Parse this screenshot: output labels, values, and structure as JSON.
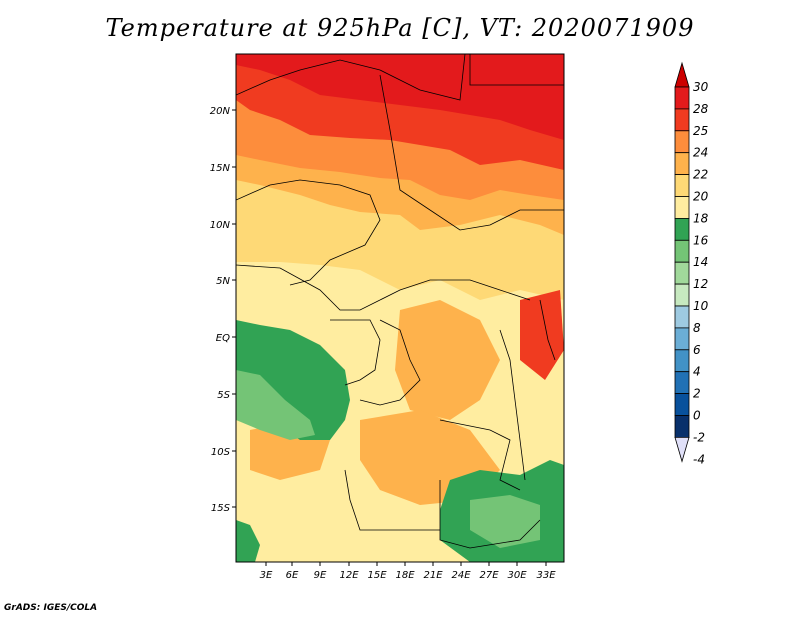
{
  "title": "Temperature at 925hPa [C], VT: 2020071909",
  "footer": "GrADS: IGES/COLA",
  "map": {
    "lon_ticks": [
      "3E",
      "6E",
      "9E",
      "12E",
      "15E",
      "18E",
      "21E",
      "24E",
      "27E",
      "30E",
      "33E"
    ],
    "lat_ticks": [
      "20N",
      "15N",
      "10N",
      "5N",
      "EQ",
      "5S",
      "10S",
      "15S"
    ]
  },
  "colorbar": {
    "labels": [
      "30",
      "28",
      "25",
      "24",
      "22",
      "20",
      "18",
      "16",
      "14",
      "12",
      "10",
      "8",
      "6",
      "4",
      "2",
      "0",
      "-2",
      "-4"
    ],
    "colors": [
      "#cc0000",
      "#e31a1c",
      "#f03b20",
      "#fd8d3c",
      "#feb24c",
      "#fed976",
      "#ffeda0",
      "#31a354",
      "#74c476",
      "#a1d99b",
      "#c7e9c0",
      "#9ecae1",
      "#6baed6",
      "#4292c6",
      "#2171b5",
      "#08519c",
      "#08306b",
      "#e0e0f8"
    ]
  }
}
